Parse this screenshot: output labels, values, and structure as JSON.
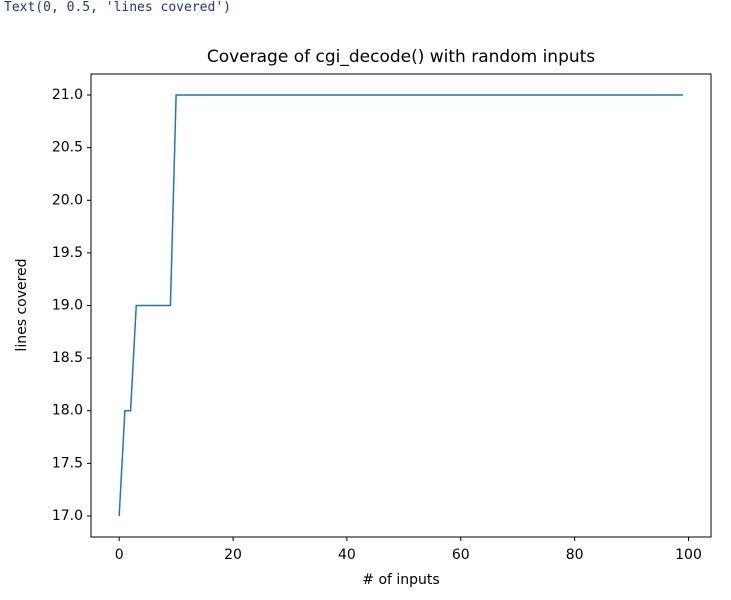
{
  "output_text": "Text(0, 0.5, 'lines covered')",
  "chart_data": {
    "type": "line",
    "title": "Coverage of cgi_decode() with random inputs",
    "x_label": "# of inputs",
    "y_label": "lines covered",
    "x": [
      0,
      1,
      2,
      3,
      4,
      5,
      6,
      7,
      8,
      9,
      10,
      11,
      12,
      13,
      14,
      15,
      16,
      17,
      18,
      19,
      20,
      21,
      22,
      23,
      24,
      25,
      26,
      27,
      28,
      29,
      30,
      31,
      32,
      33,
      34,
      35,
      36,
      37,
      38,
      39,
      40,
      41,
      42,
      43,
      44,
      45,
      46,
      47,
      48,
      49,
      50,
      51,
      52,
      53,
      54,
      55,
      56,
      57,
      58,
      59,
      60,
      61,
      62,
      63,
      64,
      65,
      66,
      67,
      68,
      69,
      70,
      71,
      72,
      73,
      74,
      75,
      76,
      77,
      78,
      79,
      80,
      81,
      82,
      83,
      84,
      85,
      86,
      87,
      88,
      89,
      90,
      91,
      92,
      93,
      94,
      95,
      96,
      97,
      98,
      99
    ],
    "series": [
      {
        "color": "#1f77b4",
        "values": [
          17,
          18,
          18,
          19,
          19,
          19,
          19,
          19,
          19,
          19,
          21,
          21,
          21,
          21,
          21,
          21,
          21,
          21,
          21,
          21,
          21,
          21,
          21,
          21,
          21,
          21,
          21,
          21,
          21,
          21,
          21,
          21,
          21,
          21,
          21,
          21,
          21,
          21,
          21,
          21,
          21,
          21,
          21,
          21,
          21,
          21,
          21,
          21,
          21,
          21,
          21,
          21,
          21,
          21,
          21,
          21,
          21,
          21,
          21,
          21,
          21,
          21,
          21,
          21,
          21,
          21,
          21,
          21,
          21,
          21,
          21,
          21,
          21,
          21,
          21,
          21,
          21,
          21,
          21,
          21,
          21,
          21,
          21,
          21,
          21,
          21,
          21,
          21,
          21,
          21,
          21,
          21,
          21,
          21,
          21,
          21,
          21,
          21,
          21,
          21
        ]
      }
    ],
    "xlim": [
      -4.95,
      103.95
    ],
    "ylim": [
      16.8,
      21.2
    ],
    "xticks": [
      0,
      20,
      40,
      60,
      80,
      100
    ],
    "yticks": [
      {
        "value": 17,
        "label": "17.0"
      },
      {
        "value": 17.5,
        "label": "17.5"
      },
      {
        "value": 18,
        "label": "18.0"
      },
      {
        "value": 18.5,
        "label": "18.5"
      },
      {
        "value": 19,
        "label": "19.0"
      },
      {
        "value": 19.5,
        "label": "19.5"
      },
      {
        "value": 20,
        "label": "20.0"
      },
      {
        "value": 20.5,
        "label": "20.5"
      },
      {
        "value": 21,
        "label": "21.0"
      }
    ]
  }
}
